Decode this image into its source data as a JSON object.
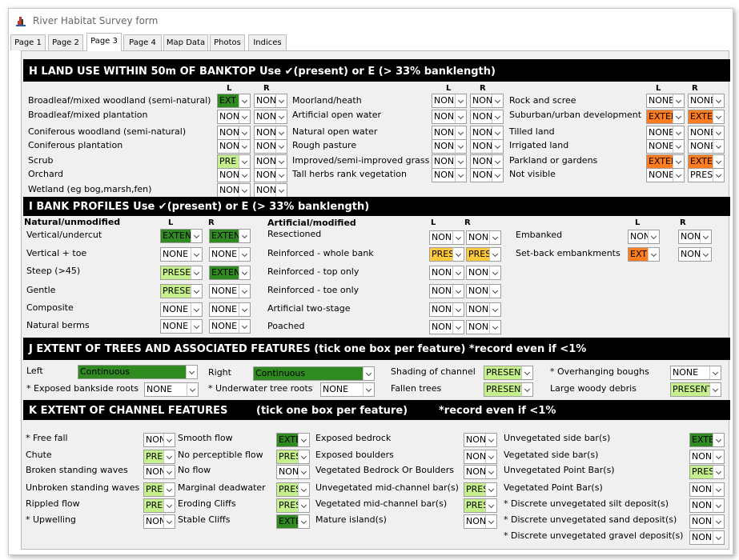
{
  "title": "River Habitat Survey form",
  "tabs": [
    "Page 1",
    "Page 2",
    "Page 3",
    "Page 4",
    "Map Data",
    "Photos",
    "Indices"
  ],
  "colors": {
    "light_green": "#c6f08c",
    "dark_green": "#2f8b1f",
    "orange": "#ff7d1f",
    "yellow": "#ffc93c"
  },
  "sections": {
    "H": {
      "title": "H  LAND USE WITHIN 50m OF BANKTOP  Use ✔(present) or E (> 33% banklength)",
      "col_l": "L",
      "col_r": "R",
      "rows": [
        {
          "label": "Broadleaf/mixed woodland (semi-natural)",
          "l": "EXT",
          "r": "NONE"
        },
        {
          "label": "Broadleaf/mixed plantation",
          "l": "NONE",
          "r": "NONE"
        },
        {
          "label": "Coniferous woodland (semi-natural)",
          "l": "NONE",
          "r": "NONE"
        },
        {
          "label": "Coniferous plantation",
          "l": "NONE",
          "r": "NONE"
        },
        {
          "label": "Scrub",
          "l": "PRE",
          "r": "NONE"
        },
        {
          "label": "Orchard",
          "l": "NONE",
          "r": "NONE"
        },
        {
          "label": "Wetland (eg bog,marsh,fen)",
          "l": "NONE",
          "r": "NONE"
        },
        {
          "label": "Moorland/heath",
          "l": "NONE",
          "r": "NONE"
        },
        {
          "label": "Artificial open water",
          "l": "NONE",
          "r": "NONE"
        },
        {
          "label": "Natural open water",
          "l": "NONE",
          "r": "NONE"
        },
        {
          "label": "Rough pasture",
          "l": "NONE",
          "r": "NONE"
        },
        {
          "label": "Improved/semi-improved grass",
          "l": "NONE",
          "r": "NONE"
        },
        {
          "label": "Tall herbs rank vegetation",
          "l": "NONE",
          "r": "NONE"
        },
        {
          "label": "Rock and scree",
          "l": "NONE",
          "r": "NONE"
        },
        {
          "label": "Suburban/urban development",
          "l": "EXTEN",
          "r": "EXTE"
        },
        {
          "label": "Tilled land",
          "l": "NONE",
          "r": "NONE"
        },
        {
          "label": "Irrigated land",
          "l": "NONE",
          "r": "NONE"
        },
        {
          "label": "Parkland or gardens",
          "l": "EXTEN",
          "r": "EXTE"
        },
        {
          "label": "Not visible",
          "l": "NONE",
          "r": "PRES"
        }
      ]
    },
    "I": {
      "title": "I  BANK PROFILES  Use ✔(present) or E (> 33% banklength)",
      "natural": "Natural/unmodified",
      "artificial": "Artificial/modified",
      "col_l": "L",
      "col_r": "R",
      "rows": [
        {
          "label": "Vertical/undercut",
          "l": "EXTEN",
          "r": "EXTEN"
        },
        {
          "label": "Vertical + toe",
          "l": "NONE",
          "r": "NONE"
        },
        {
          "label": "Steep (>45)",
          "l": "PRESE",
          "r": "EXTEN"
        },
        {
          "label": "Gentle",
          "l": "PRESE",
          "r": "NONE"
        },
        {
          "label": "Composite",
          "l": "NONE",
          "r": "NONE"
        },
        {
          "label": "Natural berms",
          "l": "NONE",
          "r": "NONE"
        },
        {
          "label": "Resectioned",
          "l": "NONE",
          "r": "NONE"
        },
        {
          "label": "Reinforced - whole bank",
          "l": "PRESE",
          "r": "PRESE"
        },
        {
          "label": "Reinforced - top only",
          "l": "NONE",
          "r": "NONE"
        },
        {
          "label": "Reinforced - toe only",
          "l": "NONE",
          "r": "NONE"
        },
        {
          "label": "Artificial two-stage",
          "l": "NONE",
          "r": "NONE"
        },
        {
          "label": "Poached",
          "l": "NONE",
          "r": "NONE"
        },
        {
          "label": "Embanked",
          "l": "NONE",
          "r": "NONE"
        },
        {
          "label": "Set-back embankments",
          "l": "EXT",
          "r": "NONE"
        }
      ]
    },
    "J": {
      "title": "J  EXTENT OF TREES AND ASSOCIATED FEATURES (tick one box per feature)  *record even if <1%",
      "left_label": "Left",
      "left_value": "Continuous",
      "right_label": "Right",
      "right_value": "Continuous",
      "items": [
        {
          "label": "Shading of channel",
          "value": "PRESENT"
        },
        {
          "label": "* Overhanging boughs",
          "value": "NONE"
        },
        {
          "label": "* Exposed bankside roots",
          "value": "NONE"
        },
        {
          "label": "* Underwater tree roots",
          "value": "NONE"
        },
        {
          "label": "Fallen trees",
          "value": "PRESENT"
        },
        {
          "label": "Large woody debris",
          "value": "PRESENT"
        }
      ]
    },
    "K": {
      "title": "K  EXTENT OF CHANNEL FEATURES",
      "title2": "(tick one box per feature)",
      "title3": "*record even if <1%",
      "items": [
        {
          "label": "* Free fall",
          "value": "NONE"
        },
        {
          "label": "Chute",
          "value": "PRES"
        },
        {
          "label": "Broken standing waves",
          "value": "NONE"
        },
        {
          "label": "Unbroken standing waves",
          "value": "PRES"
        },
        {
          "label": "Rippled flow",
          "value": "PRES"
        },
        {
          "label": "* Upwelling",
          "value": "NONE"
        },
        {
          "label": "Smooth flow",
          "value": "EXTE"
        },
        {
          "label": "No perceptible flow",
          "value": "PRES"
        },
        {
          "label": "No flow",
          "value": "NONE"
        },
        {
          "label": "Marginal deadwater",
          "value": "PRES"
        },
        {
          "label": "Eroding Cliffs",
          "value": "PRES"
        },
        {
          "label": "Stable Cliffs",
          "value": "EXTE"
        },
        {
          "label": "Exposed bedrock",
          "value": "NONE"
        },
        {
          "label": "Exposed boulders",
          "value": "NONE"
        },
        {
          "label": "Vegetated Bedrock Or Boulders",
          "value": "NONE"
        },
        {
          "label": "Unvegetated mid-channel bar(s)",
          "value": "PRES"
        },
        {
          "label": "Vegetated mid-channel bar(s)",
          "value": "PRES"
        },
        {
          "label": "Mature island(s)",
          "value": "NONE"
        },
        {
          "label": "Unvegetated side bar(s)",
          "value": "EXTE"
        },
        {
          "label": "Vegetated side bar(s)",
          "value": "NONE"
        },
        {
          "label": "Unvegetated Point Bar(s)",
          "value": "PRES"
        },
        {
          "label": "Vegetated Point Bar(s)",
          "value": "NONE"
        },
        {
          "label": "* Discrete unvegetated silt deposit(s)",
          "value": "NONE"
        },
        {
          "label": "* Discrete unvegetated sand deposit(s)",
          "value": "NONE"
        },
        {
          "label": "* Discrete unvegetated gravel deposit(s)",
          "value": "NONE"
        }
      ]
    }
  }
}
